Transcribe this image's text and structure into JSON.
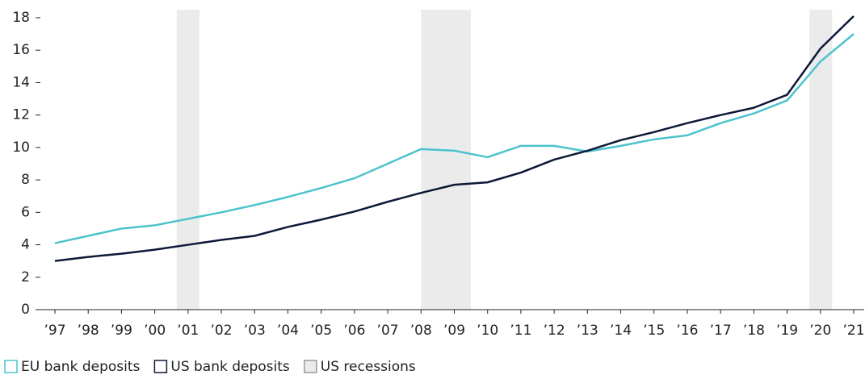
{
  "chart_data": {
    "type": "line",
    "x": [
      1997,
      1998,
      1999,
      2000,
      2001,
      2002,
      2003,
      2004,
      2005,
      2006,
      2007,
      2008,
      2009,
      2010,
      2011,
      2012,
      2013,
      2014,
      2015,
      2016,
      2017,
      2018,
      2019,
      2020,
      2021
    ],
    "xlim": [
      1997,
      2021
    ],
    "xticks": [
      {
        "value": 1997,
        "label": "’97"
      },
      {
        "value": 1998,
        "label": "’98"
      },
      {
        "value": 1999,
        "label": "’99"
      },
      {
        "value": 2000,
        "label": "’00"
      },
      {
        "value": 2001,
        "label": "’01"
      },
      {
        "value": 2002,
        "label": "’02"
      },
      {
        "value": 2003,
        "label": "’03"
      },
      {
        "value": 2004,
        "label": "’04"
      },
      {
        "value": 2005,
        "label": "’05"
      },
      {
        "value": 2006,
        "label": "’06"
      },
      {
        "value": 2007,
        "label": "’07"
      },
      {
        "value": 2008,
        "label": "’08"
      },
      {
        "value": 2009,
        "label": "’09"
      },
      {
        "value": 2010,
        "label": "’10"
      },
      {
        "value": 2011,
        "label": "’11"
      },
      {
        "value": 2012,
        "label": "’12"
      },
      {
        "value": 2013,
        "label": "’13"
      },
      {
        "value": 2014,
        "label": "’14"
      },
      {
        "value": 2015,
        "label": "’15"
      },
      {
        "value": 2016,
        "label": "’16"
      },
      {
        "value": 2017,
        "label": "’17"
      },
      {
        "value": 2018,
        "label": "’18"
      },
      {
        "value": 2019,
        "label": "’19"
      },
      {
        "value": 2020,
        "label": "’20"
      },
      {
        "value": 2021,
        "label": "’21"
      }
    ],
    "ylim": [
      0,
      18
    ],
    "yticks": [
      0,
      2,
      4,
      6,
      8,
      10,
      12,
      14,
      16,
      18
    ],
    "series": [
      {
        "name": "EU bank deposits",
        "color": "#4cc3cd",
        "values": [
          4.1,
          4.55,
          5.0,
          5.2,
          5.6,
          6.0,
          6.45,
          6.95,
          7.5,
          8.1,
          9.0,
          9.9,
          9.8,
          9.4,
          10.1,
          10.1,
          9.75,
          10.1,
          10.5,
          10.75,
          11.5,
          12.1,
          12.9,
          15.3,
          17.0
        ]
      },
      {
        "name": "US bank deposits",
        "color": "#0d1838",
        "values": [
          3.0,
          3.25,
          3.45,
          3.7,
          4.0,
          4.3,
          4.55,
          5.1,
          5.55,
          6.05,
          6.65,
          7.2,
          7.7,
          7.85,
          8.45,
          9.25,
          9.8,
          10.45,
          10.95,
          11.5,
          12.0,
          12.45,
          13.25,
          16.1,
          18.1
        ]
      }
    ],
    "recessions": {
      "name": "US recessions",
      "color": "#ebebeb",
      "ranges": [
        [
          2000.66,
          2001.34
        ],
        [
          2008.0,
          2009.5
        ],
        [
          2019.67,
          2020.35
        ]
      ]
    }
  }
}
